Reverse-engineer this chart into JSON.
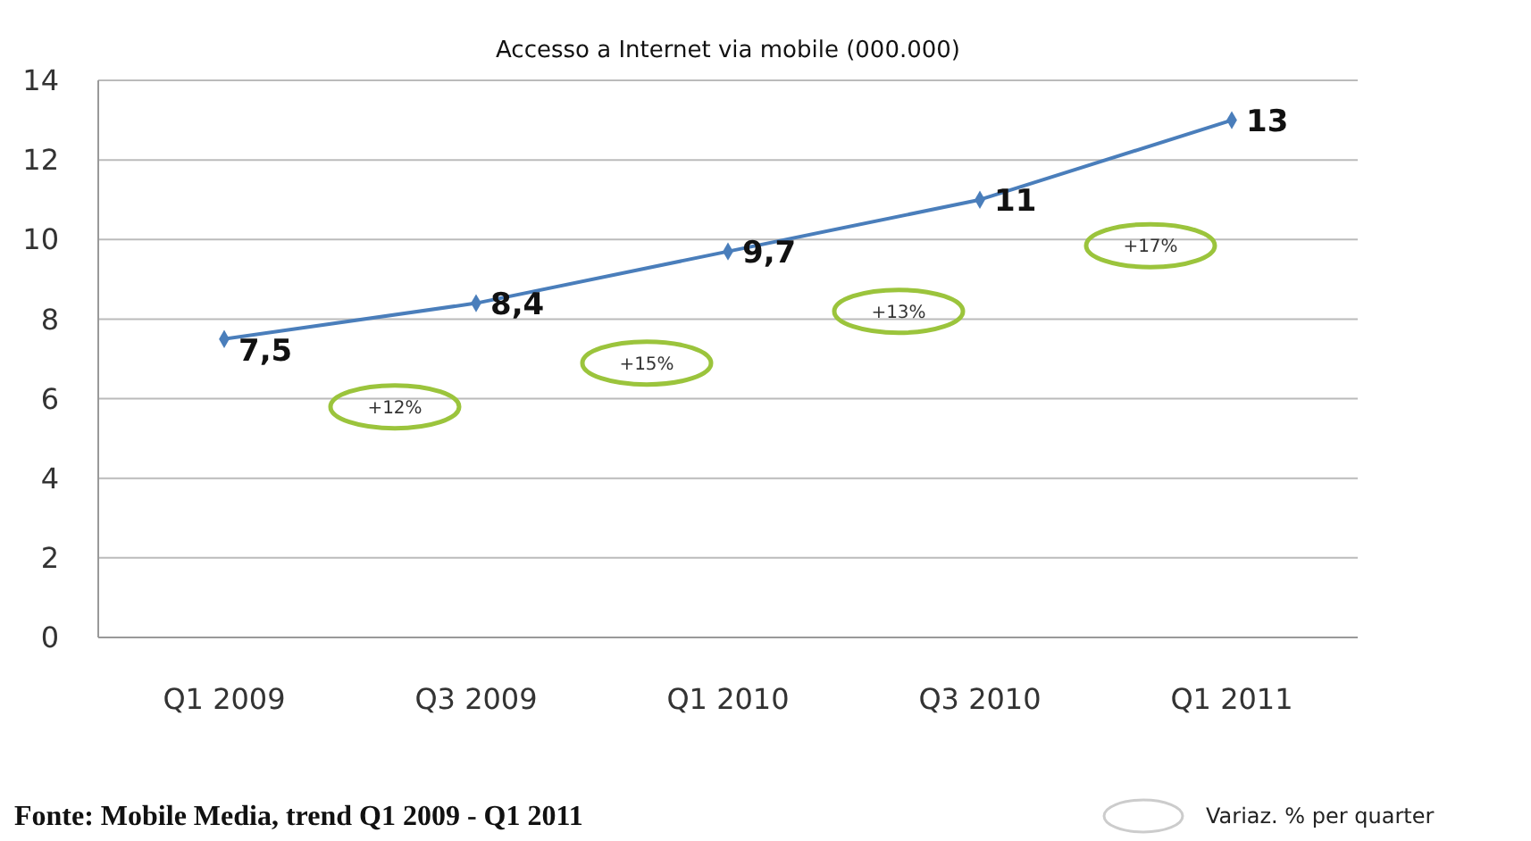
{
  "chart_data": {
    "type": "line",
    "title": "Accesso a Internet via mobile (000.000)",
    "categories": [
      "Q1 2009",
      "Q3 2009",
      "Q1 2010",
      "Q3 2010",
      "Q1 2011"
    ],
    "series": [
      {
        "color": "#4a7ebb",
        "values": [
          7.5,
          8.4,
          9.7,
          11,
          13
        ],
        "value_labels": [
          "7,5",
          "8,4",
          "9,7",
          "11",
          "13"
        ]
      }
    ],
    "ylim": [
      0,
      14
    ],
    "yticks": [
      0,
      2,
      4,
      6,
      8,
      10,
      12,
      14
    ],
    "grid": "y",
    "marker": "diamond",
    "line_style": "solid",
    "annotations": [
      "+12%",
      "+15%",
      "+13%",
      "+17%",
      "Fonte: Mobile Media, trend Q1 2009 - Q1 2011",
      "Variaz. % per quarter"
    ]
  }
}
